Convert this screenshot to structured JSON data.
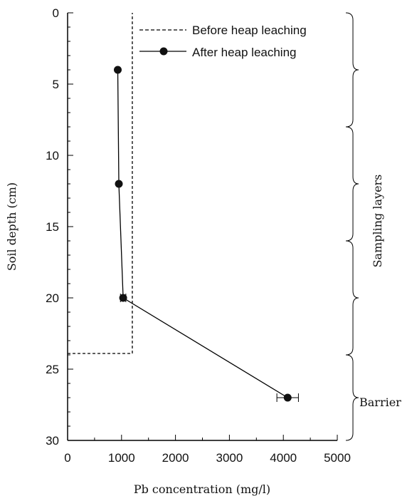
{
  "chart_data": {
    "type": "line",
    "xlabel": "Pb concentration (mg/l)",
    "ylabel": "Soil depth (cm)",
    "xlim": [
      0,
      5000
    ],
    "ylim": [
      0,
      30
    ],
    "y_inverted": true,
    "x_ticks": [
      "0",
      "1000",
      "2000",
      "3000",
      "4000",
      "5000"
    ],
    "y_ticks": [
      "0",
      "5",
      "10",
      "15",
      "20",
      "25",
      "30"
    ],
    "grid": false,
    "legend_position": "top-right",
    "series": [
      {
        "name": "Before heap leaching",
        "style": "dashed",
        "x": [
          0,
          1200,
          1200
        ],
        "y": [
          23.9,
          23.9,
          0
        ]
      },
      {
        "name": "After heap leaching",
        "style": "solid-with-markers",
        "x": [
          930,
          950,
          1030,
          4080
        ],
        "y": [
          4,
          12,
          20,
          27
        ],
        "x_error": [
          0,
          0,
          50,
          200
        ]
      }
    ],
    "annotations": {
      "sampling_layers_label": "Sampling layers",
      "barrier_label": "Barrier",
      "sampling_brackets": [
        [
          0,
          8
        ],
        [
          8,
          16
        ],
        [
          16,
          24
        ]
      ],
      "barrier_bracket": [
        24,
        30
      ]
    }
  }
}
